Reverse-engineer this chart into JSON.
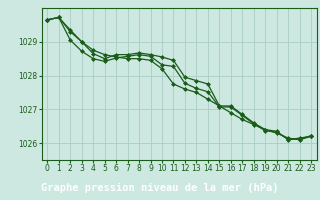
{
  "title": "Graphe pression niveau de la mer (hPa)",
  "background_color": "#cce8e0",
  "label_bg_color": "#2d6b2d",
  "label_text_color": "#ffffff",
  "grid_color": "#aaccc4",
  "line_color": "#1a5c1a",
  "marker_color": "#1a5c1a",
  "xlim": [
    -0.5,
    23.5
  ],
  "ylim": [
    1025.5,
    1030.0
  ],
  "yticks": [
    1026,
    1027,
    1028,
    1029
  ],
  "xticks": [
    0,
    1,
    2,
    3,
    4,
    5,
    6,
    7,
    8,
    9,
    10,
    11,
    12,
    13,
    14,
    15,
    16,
    17,
    18,
    19,
    20,
    21,
    22,
    23
  ],
  "series": [
    [
      1029.65,
      1029.72,
      1029.3,
      1029.0,
      1028.75,
      1028.62,
      1028.55,
      1028.5,
      1028.5,
      1028.45,
      1028.2,
      1027.75,
      1027.6,
      1027.5,
      1027.3,
      1027.1,
      1026.9,
      1026.7,
      1026.55,
      1026.4,
      1026.3,
      1026.15,
      1026.1,
      1026.2
    ],
    [
      1029.65,
      1029.72,
      1029.35,
      1029.0,
      1028.65,
      1028.5,
      1028.62,
      1028.62,
      1028.67,
      1028.62,
      1028.55,
      1028.45,
      1027.95,
      1027.85,
      1027.75,
      1027.1,
      1027.1,
      1026.85,
      1026.6,
      1026.4,
      1026.35,
      1026.1,
      1026.15,
      1026.2
    ],
    [
      1029.65,
      1029.72,
      1029.05,
      1028.72,
      1028.5,
      1028.42,
      1028.52,
      1028.57,
      1028.62,
      1028.57,
      1028.32,
      1028.27,
      1027.77,
      1027.62,
      1027.52,
      1027.07,
      1027.07,
      1026.82,
      1026.57,
      1026.37,
      1026.32,
      1026.12,
      1026.12,
      1026.22
    ]
  ]
}
